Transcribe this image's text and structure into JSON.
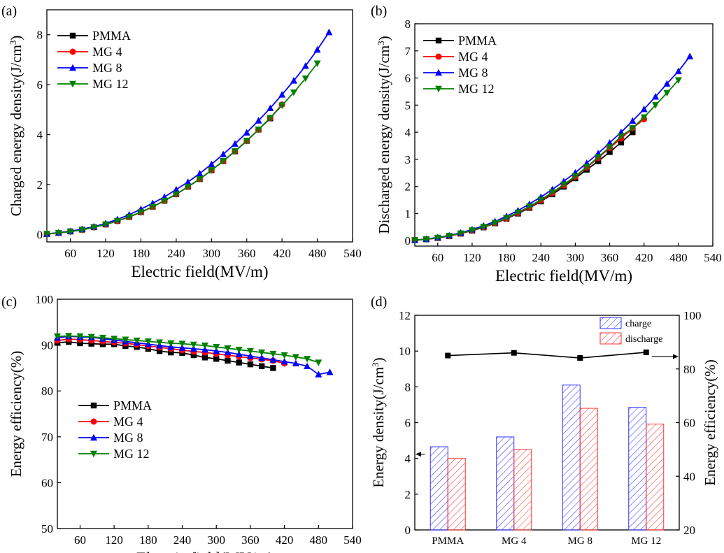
{
  "figure": {
    "panels": [
      {
        "id": "a",
        "label": "(a)"
      },
      {
        "id": "b",
        "label": "(b)"
      },
      {
        "id": "c",
        "label": "(c)"
      },
      {
        "id": "d",
        "label": "(d)"
      }
    ]
  },
  "series_styles": [
    {
      "name": "PMMA",
      "color": "#000000",
      "marker": "square"
    },
    {
      "name": "MG 4",
      "color": "#ff0000",
      "marker": "circle"
    },
    {
      "name": "MG 8",
      "color": "#0000ff",
      "marker": "triangle-up"
    },
    {
      "name": "MG 12",
      "color": "#008000",
      "marker": "triangle-down"
    }
  ],
  "chart_data": [
    {
      "panel": "(a)",
      "type": "line",
      "xlabel": "Electric field(MV/m)",
      "ylabel": "Charged energy density(J/cm³)",
      "xlim": [
        20,
        540
      ],
      "ylim": [
        -0.3,
        9
      ],
      "xticks": [
        60,
        120,
        180,
        240,
        300,
        360,
        420,
        480,
        540
      ],
      "yticks": [
        0,
        2,
        4,
        6,
        8
      ],
      "legend": "top-left",
      "series": [
        {
          "name": "PMMA",
          "x": [
            20,
            40,
            60,
            80,
            100,
            120,
            140,
            160,
            180,
            200,
            220,
            240,
            260,
            280,
            300,
            320,
            340,
            360,
            380,
            400
          ],
          "y": [
            0.02,
            0.06,
            0.12,
            0.19,
            0.29,
            0.4,
            0.54,
            0.7,
            0.89,
            1.11,
            1.35,
            1.61,
            1.91,
            2.22,
            2.57,
            2.94,
            3.33,
            3.75,
            4.2,
            4.65
          ]
        },
        {
          "name": "MG 4",
          "x": [
            20,
            40,
            60,
            80,
            100,
            120,
            140,
            160,
            180,
            200,
            220,
            240,
            260,
            280,
            300,
            320,
            340,
            360,
            380,
            400,
            420
          ],
          "y": [
            0.02,
            0.06,
            0.12,
            0.19,
            0.29,
            0.4,
            0.54,
            0.7,
            0.89,
            1.11,
            1.35,
            1.61,
            1.91,
            2.22,
            2.57,
            2.94,
            3.33,
            3.75,
            4.2,
            4.67,
            5.2
          ]
        },
        {
          "name": "MG 8",
          "x": [
            20,
            40,
            60,
            80,
            100,
            120,
            140,
            160,
            180,
            200,
            220,
            240,
            260,
            280,
            300,
            320,
            340,
            360,
            380,
            400,
            420,
            440,
            460,
            480,
            500
          ],
          "y": [
            0.02,
            0.07,
            0.13,
            0.21,
            0.31,
            0.44,
            0.6,
            0.79,
            1.01,
            1.25,
            1.5,
            1.8,
            2.1,
            2.44,
            2.81,
            3.21,
            3.63,
            4.08,
            4.56,
            5.06,
            5.6,
            6.16,
            6.75,
            7.4,
            8.1
          ]
        },
        {
          "name": "MG 12",
          "x": [
            20,
            40,
            60,
            80,
            100,
            120,
            140,
            160,
            180,
            200,
            220,
            240,
            260,
            280,
            300,
            320,
            340,
            360,
            380,
            400,
            420,
            440,
            460,
            480
          ],
          "y": [
            0.02,
            0.06,
            0.11,
            0.18,
            0.28,
            0.4,
            0.54,
            0.7,
            0.89,
            1.11,
            1.35,
            1.61,
            1.91,
            2.22,
            2.57,
            2.94,
            3.33,
            3.75,
            4.2,
            4.67,
            5.17,
            5.69,
            6.25,
            6.85
          ]
        }
      ]
    },
    {
      "panel": "(b)",
      "type": "line",
      "xlabel": "Electric field(MV/m)",
      "ylabel": "Discharged energy density(J/cm³)",
      "xlim": [
        20,
        540
      ],
      "ylim": [
        -0.2,
        8
      ],
      "xticks": [
        60,
        120,
        180,
        240,
        300,
        360,
        420,
        480,
        540
      ],
      "yticks": [
        0,
        1,
        2,
        3,
        4,
        5,
        6,
        7,
        8
      ],
      "legend": "top-left",
      "series": [
        {
          "name": "PMMA",
          "x": [
            20,
            40,
            60,
            80,
            100,
            120,
            140,
            160,
            180,
            200,
            220,
            240,
            260,
            280,
            300,
            320,
            340,
            360,
            380,
            400
          ],
          "y": [
            0.02,
            0.05,
            0.1,
            0.17,
            0.26,
            0.37,
            0.49,
            0.64,
            0.81,
            1.0,
            1.21,
            1.45,
            1.71,
            1.99,
            2.3,
            2.62,
            2.93,
            3.27,
            3.62,
            4.0
          ]
        },
        {
          "name": "MG 4",
          "x": [
            20,
            40,
            60,
            80,
            100,
            120,
            140,
            160,
            180,
            200,
            220,
            240,
            260,
            280,
            300,
            320,
            340,
            360,
            380,
            400,
            420
          ],
          "y": [
            0.02,
            0.05,
            0.1,
            0.17,
            0.26,
            0.37,
            0.5,
            0.65,
            0.82,
            1.02,
            1.24,
            1.48,
            1.75,
            2.04,
            2.36,
            2.7,
            3.05,
            3.42,
            3.77,
            4.15,
            4.48
          ]
        },
        {
          "name": "MG 8",
          "x": [
            20,
            40,
            60,
            80,
            100,
            120,
            140,
            160,
            180,
            200,
            220,
            240,
            260,
            280,
            300,
            320,
            340,
            360,
            380,
            400,
            420,
            440,
            460,
            480,
            500
          ],
          "y": [
            0.02,
            0.06,
            0.12,
            0.19,
            0.29,
            0.41,
            0.55,
            0.71,
            0.9,
            1.11,
            1.35,
            1.61,
            1.89,
            2.19,
            2.51,
            2.86,
            3.22,
            3.61,
            4.0,
            4.42,
            4.85,
            5.31,
            5.79,
            6.25,
            6.8
          ]
        },
        {
          "name": "MG 12",
          "x": [
            20,
            40,
            60,
            80,
            100,
            120,
            140,
            160,
            180,
            200,
            220,
            240,
            260,
            280,
            300,
            320,
            340,
            360,
            380,
            400,
            420,
            440,
            460,
            480
          ],
          "y": [
            0.02,
            0.05,
            0.11,
            0.18,
            0.27,
            0.38,
            0.51,
            0.66,
            0.84,
            1.04,
            1.26,
            1.51,
            1.78,
            2.07,
            2.38,
            2.72,
            3.08,
            3.45,
            3.85,
            4.15,
            4.55,
            5.0,
            5.45,
            5.92
          ]
        }
      ]
    },
    {
      "panel": "(c)",
      "type": "line",
      "xlabel": "Electric field(MV/m)",
      "ylabel": "Energy efficiency(%)",
      "xlim": [
        20,
        540
      ],
      "ylim": [
        50,
        100
      ],
      "xticks": [
        60,
        120,
        180,
        240,
        300,
        360,
        420,
        480,
        540
      ],
      "yticks": [
        50,
        60,
        70,
        80,
        90,
        100
      ],
      "legend": "lower-left",
      "series": [
        {
          "name": "PMMA",
          "x": [
            20,
            40,
            60,
            80,
            100,
            120,
            140,
            160,
            180,
            200,
            220,
            240,
            260,
            280,
            300,
            320,
            340,
            360,
            380,
            400
          ],
          "y": [
            90.5,
            90.7,
            90.4,
            90.3,
            90.2,
            90.2,
            89.8,
            89.6,
            89.2,
            88.7,
            88.4,
            88.3,
            87.8,
            87.3,
            87.0,
            86.6,
            86.2,
            85.8,
            85.4,
            85.0
          ]
        },
        {
          "name": "MG 4",
          "x": [
            20,
            40,
            60,
            80,
            100,
            120,
            140,
            160,
            180,
            200,
            220,
            240,
            260,
            280,
            300,
            320,
            340,
            360,
            380,
            400,
            420
          ],
          "y": [
            91.0,
            91.3,
            91.2,
            91.0,
            90.8,
            90.6,
            90.4,
            90.1,
            89.8,
            89.5,
            89.2,
            88.9,
            88.6,
            88.4,
            88.1,
            87.8,
            87.5,
            87.2,
            86.9,
            86.6,
            86.0
          ]
        },
        {
          "name": "MG 8",
          "x": [
            20,
            40,
            60,
            80,
            100,
            120,
            140,
            160,
            180,
            200,
            220,
            240,
            260,
            280,
            300,
            320,
            340,
            360,
            380,
            400,
            420,
            440,
            460,
            480,
            500
          ],
          "y": [
            91.6,
            91.9,
            91.8,
            91.7,
            91.4,
            91.1,
            90.8,
            90.5,
            90.2,
            89.9,
            89.6,
            89.4,
            89.2,
            89.0,
            88.7,
            88.4,
            88.0,
            87.6,
            87.2,
            86.8,
            86.4,
            86.0,
            85.4,
            83.6,
            84.1
          ]
        },
        {
          "name": "MG 12",
          "x": [
            20,
            40,
            60,
            80,
            100,
            120,
            140,
            160,
            180,
            200,
            220,
            240,
            260,
            280,
            300,
            320,
            340,
            360,
            380,
            400,
            420,
            440,
            460,
            480
          ],
          "y": [
            91.9,
            92.0,
            91.9,
            91.8,
            91.6,
            91.4,
            91.2,
            91.0,
            90.8,
            90.6,
            90.4,
            90.3,
            90.1,
            89.9,
            89.6,
            89.3,
            89.0,
            88.7,
            88.4,
            88.1,
            87.8,
            87.4,
            87.0,
            86.2
          ]
        }
      ]
    },
    {
      "panel": "(d)",
      "type": "bar",
      "categories": [
        "PMMA",
        "MG 4",
        "MG 8",
        "MG 12"
      ],
      "ylabel": "Energy density(J/cm³)",
      "ylim": [
        0,
        12
      ],
      "yticks": [
        0,
        2,
        4,
        6,
        8,
        10,
        12
      ],
      "y2label": "Energy efficiency(%)",
      "y2lim": [
        20,
        100
      ],
      "y2ticks": [
        20,
        40,
        60,
        80,
        100
      ],
      "legend": "top-right",
      "series": [
        {
          "name": "charge",
          "color": "#3333ff",
          "values": [
            4.65,
            5.2,
            8.1,
            6.85
          ]
        },
        {
          "name": "discharge",
          "color": "#ff3333",
          "values": [
            4.0,
            4.5,
            6.8,
            5.92
          ]
        }
      ],
      "efficiency": {
        "values": [
          85.0,
          86.0,
          84.1,
          86.2
        ],
        "color": "#000000"
      }
    }
  ]
}
